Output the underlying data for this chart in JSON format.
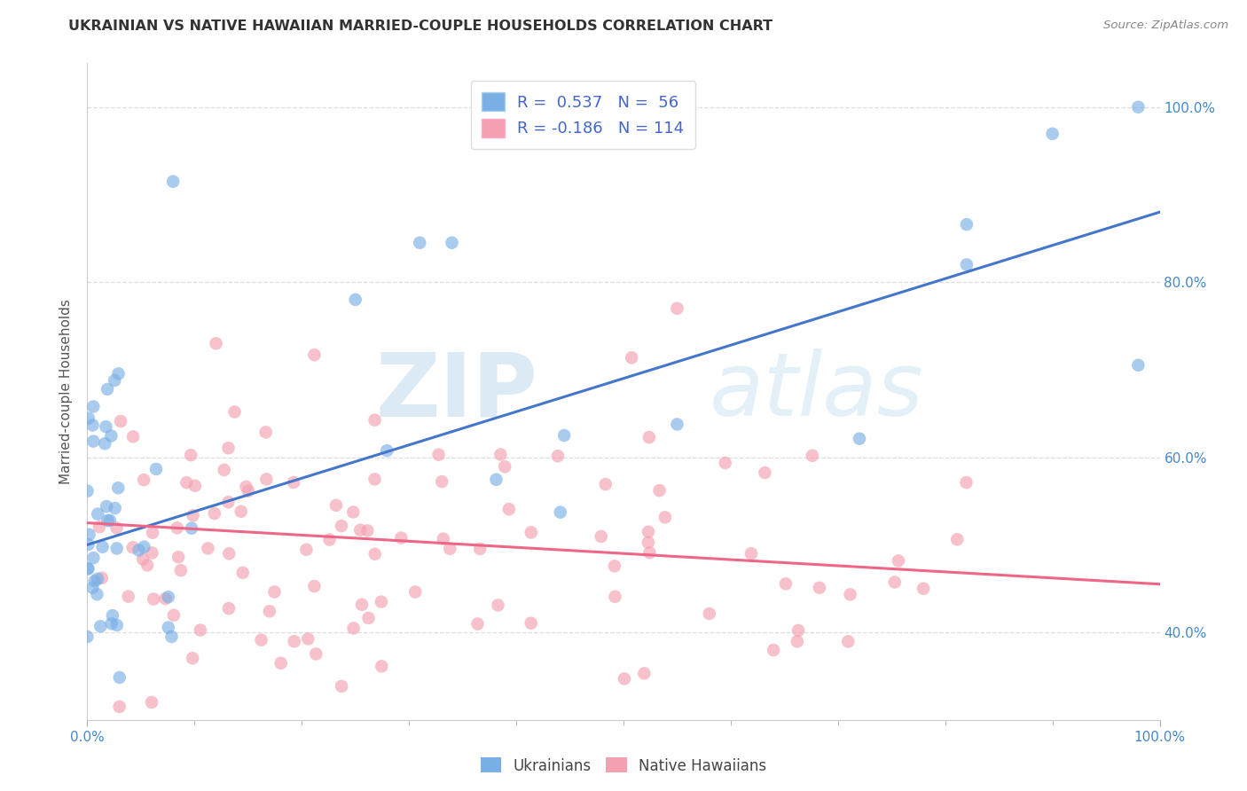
{
  "title": "UKRAINIAN VS NATIVE HAWAIIAN MARRIED-COUPLE HOUSEHOLDS CORRELATION CHART",
  "source": "Source: ZipAtlas.com",
  "ylabel": "Married-couple Households",
  "legend_label1": "Ukrainians",
  "legend_label2": "Native Hawaiians",
  "blue_color": "#7AAFE6",
  "pink_color": "#F4A0B0",
  "blue_line_color": "#4477CC",
  "pink_line_color": "#EE6688",
  "background_color": "#FFFFFF",
  "grid_color": "#DDDDDD",
  "watermark_zip": "ZIP",
  "watermark_atlas": "atlas",
  "R_blue": 0.537,
  "N_blue": 56,
  "R_pink": -0.186,
  "N_pink": 114,
  "blue_line_x0": 0.0,
  "blue_line_y0": 0.5,
  "blue_line_x1": 1.0,
  "blue_line_y1": 0.88,
  "pink_line_x0": 0.0,
  "pink_line_y0": 0.525,
  "pink_line_x1": 1.0,
  "pink_line_y1": 0.455,
  "xlim": [
    0.0,
    1.0
  ],
  "ylim": [
    0.3,
    1.05
  ],
  "ytick_positions": [
    0.4,
    0.6,
    0.8,
    1.0
  ],
  "ytick_labels": [
    "40.0%",
    "60.0%",
    "80.0%",
    "100.0%"
  ]
}
